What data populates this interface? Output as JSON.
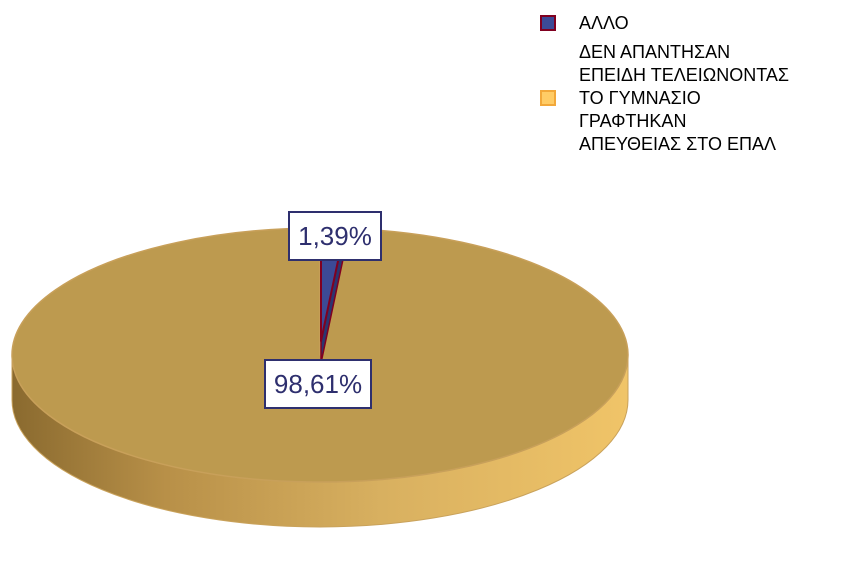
{
  "chart_data": {
    "type": "pie",
    "style": "3d-tilted",
    "categories": [
      "ΑΛΛΟ",
      "ΔΕΝ ΑΠΑΝΤΗΣΑΝ ΕΠΕΙΔΗ ΤΕΛΕΙΩΝΟΝΤΑΣ ΤΟ ΓΥΜΝΑΣΙΟ ΓΡΑΦΤΗΚΑΝ ΑΠΕΥΘΕΙΑΣ ΣΤΟ ΕΠΑΛ"
    ],
    "values": [
      1.39,
      98.61
    ],
    "data_labels": [
      "1,39%",
      "98,61%"
    ],
    "colors": [
      "#3c4a96",
      "#bd9a4f"
    ],
    "edge_colors": [
      "#800020",
      "#c8a05a"
    ],
    "label_text_color": "#2e2f6e",
    "label_border_color": "#2e2f6e",
    "legend_position": "top-right",
    "legend": [
      {
        "lines": [
          "ΑΛΛΟ"
        ],
        "swatch_fill": "#3c4a96",
        "swatch_border": "#800020"
      },
      {
        "lines": [
          "ΔΕΝ ΑΠΑΝΤΗΣΑΝ",
          "ΕΠΕΙΔΗ ΤΕΛΕΙΩΝΟΝΤΑΣ",
          "ΤΟ ΓΥΜΝΑΣΙΟ",
          "ΓΡΑΦΤΗΚΑΝ",
          "ΑΠΕΥΘΕΙΑΣ ΣΤΟ ΕΠΑΛ"
        ],
        "swatch_fill": "#ffcc66",
        "swatch_border": "#f2a83a"
      }
    ]
  }
}
